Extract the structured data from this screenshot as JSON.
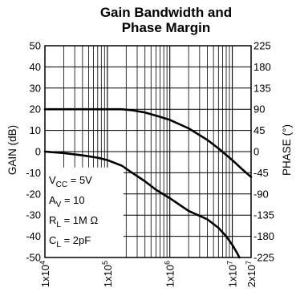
{
  "chart_data": {
    "type": "line",
    "title": [
      "Gain Bandwidth and",
      "Phase Margin"
    ],
    "xlabel": "",
    "x_scale": "log",
    "xlim": [
      10000,
      20000000
    ],
    "x_tick_labels": [
      {
        "value": 10000,
        "mantissa": "1x10",
        "exp": "4"
      },
      {
        "value": 100000,
        "mantissa": "1x10",
        "exp": "5"
      },
      {
        "value": 1000000,
        "mantissa": "1x10",
        "exp": "6"
      },
      {
        "value": 10000000,
        "mantissa": "1x10",
        "exp": "7"
      },
      {
        "value": 20000000,
        "mantissa": "2x10",
        "exp": "7"
      }
    ],
    "y_left": {
      "label": "GAIN (dB)",
      "lim": [
        -50,
        50
      ],
      "ticks": [
        50,
        40,
        30,
        20,
        10,
        0,
        -10,
        -20,
        -30,
        -40,
        -50
      ]
    },
    "y_right": {
      "label": "PHASE (°)",
      "lim": [
        -225,
        225
      ],
      "ticks": [
        225,
        180,
        135,
        90,
        45,
        0,
        -45,
        -90,
        -135,
        -180,
        -225
      ]
    },
    "grid": true,
    "series": [
      {
        "axis": "left",
        "x": [
          10000,
          30000,
          100000,
          170000,
          250000,
          400000,
          600000,
          1000000,
          2000000,
          4000000,
          6000000,
          10000000,
          14000000,
          20000000
        ],
        "y": [
          20,
          20,
          20,
          20,
          19.5,
          18.5,
          17,
          15,
          11,
          5.5,
          1.5,
          -4,
          -8,
          -12
        ]
      },
      {
        "axis": "right",
        "x": [
          10000,
          20000,
          40000,
          70000,
          100000,
          170000,
          250000,
          400000,
          600000,
          1000000,
          2000000,
          4000000,
          6000000,
          8000000,
          10000000,
          12000000,
          13000000
        ],
        "y": [
          0,
          -3,
          -8,
          -13,
          -18,
          -30,
          -45,
          -63,
          -81,
          -99,
          -126,
          -144,
          -162,
          -180,
          -198,
          -216,
          -225
        ]
      }
    ],
    "conditions": [
      {
        "main": "V",
        "sub": "CC",
        "rest": " = 5V"
      },
      {
        "main": "A",
        "sub": "V",
        "rest": " = 10"
      },
      {
        "main": "R",
        "sub": "L",
        "rest": " = 1M Ω"
      },
      {
        "main": "C",
        "sub": "L",
        "rest": " = 2pF"
      }
    ]
  }
}
